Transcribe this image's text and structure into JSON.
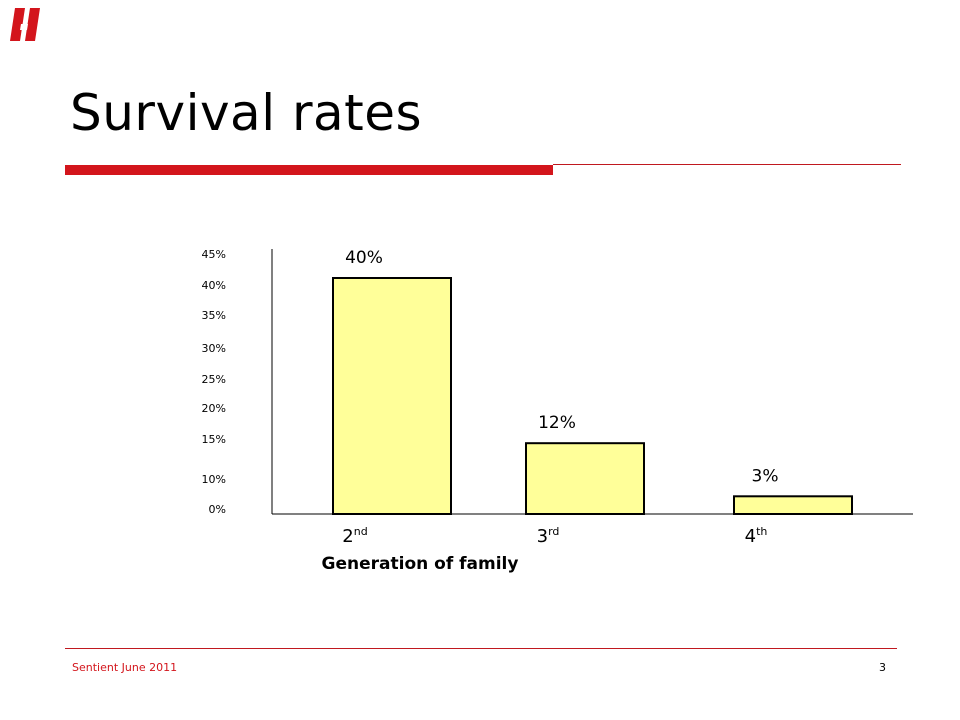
{
  "slide": {
    "title": "Survival rates",
    "footer": "Sentient June 2011",
    "page_number": "3"
  },
  "colors": {
    "accent": "#d3151c",
    "bar_fill": "#ffff99",
    "bar_stroke": "#000000"
  },
  "chart_data": {
    "type": "bar",
    "categories": [
      {
        "base": "2",
        "sup": "nd"
      },
      {
        "base": "3",
        "sup": "rd"
      },
      {
        "base": "4",
        "sup": "th"
      }
    ],
    "values": [
      40,
      12,
      3
    ],
    "data_labels": [
      "40%",
      "12%",
      "3%"
    ],
    "y_ticks": [
      "45%",
      "40%",
      "35%",
      "30%",
      "25%",
      "20%",
      "15%",
      "10%",
      "0%"
    ],
    "xlabel": "Generation of family",
    "ylabel": "",
    "ylim": [
      0,
      45
    ],
    "grid": false,
    "legend": "none"
  }
}
